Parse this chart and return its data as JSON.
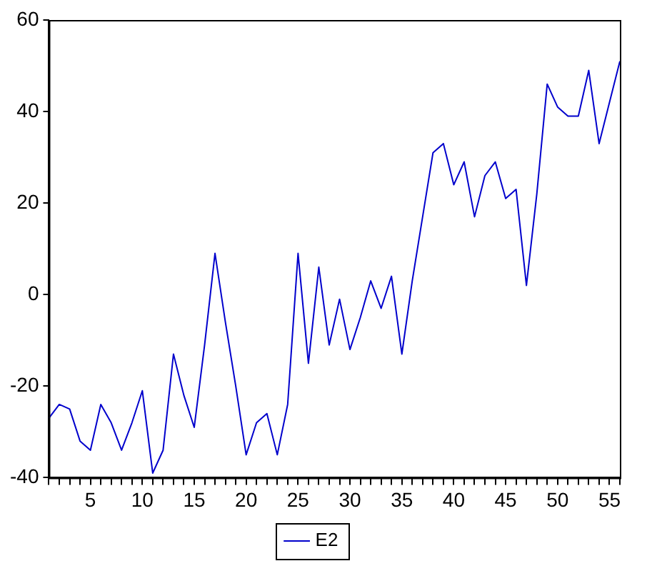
{
  "chart_data": {
    "type": "line",
    "x": [
      1,
      2,
      3,
      4,
      5,
      6,
      7,
      8,
      9,
      10,
      11,
      12,
      13,
      14,
      15,
      16,
      17,
      18,
      19,
      20,
      21,
      22,
      23,
      24,
      25,
      26,
      27,
      28,
      29,
      30,
      31,
      32,
      33,
      34,
      35,
      36,
      37,
      38,
      39,
      40,
      41,
      42,
      43,
      44,
      45,
      46,
      47,
      48,
      49,
      50,
      51,
      52,
      53,
      54,
      55,
      56
    ],
    "series": [
      {
        "name": "E2",
        "color": "#0000cc",
        "values": [
          -27,
          -24,
          -25,
          -32,
          -34,
          -24,
          -28,
          -34,
          -28,
          -21,
          -39,
          -34,
          -13,
          -22,
          -29,
          -11,
          9,
          -6,
          -20,
          -35,
          -28,
          -26,
          -35,
          -24,
          9,
          -15,
          6,
          -11,
          -1,
          -12,
          -5,
          3,
          -3,
          4,
          -13,
          3,
          17,
          31,
          33,
          24,
          29,
          17,
          26,
          29,
          21,
          23,
          2,
          22,
          46,
          41,
          39,
          39,
          49,
          33,
          42,
          51
        ]
      }
    ],
    "xlim": [
      1,
      56
    ],
    "xticks": [
      {
        "value": 1,
        "label": null
      },
      {
        "value": 2,
        "label": null
      },
      {
        "value": 3,
        "label": null
      },
      {
        "value": 4,
        "label": null
      },
      5,
      {
        "value": 6,
        "label": null
      },
      {
        "value": 7,
        "label": null
      },
      {
        "value": 8,
        "label": null
      },
      {
        "value": 9,
        "label": null
      },
      10,
      {
        "value": 11,
        "label": null
      },
      {
        "value": 12,
        "label": null
      },
      {
        "value": 13,
        "label": null
      },
      {
        "value": 14,
        "label": null
      },
      15,
      {
        "value": 16,
        "label": null
      },
      {
        "value": 17,
        "label": null
      },
      {
        "value": 18,
        "label": null
      },
      {
        "value": 19,
        "label": null
      },
      20,
      {
        "value": 21,
        "label": null
      },
      {
        "value": 22,
        "label": null
      },
      {
        "value": 23,
        "label": null
      },
      {
        "value": 24,
        "label": null
      },
      25,
      {
        "value": 26,
        "label": null
      },
      {
        "value": 27,
        "label": null
      },
      {
        "value": 28,
        "label": null
      },
      {
        "value": 29,
        "label": null
      },
      30,
      {
        "value": 31,
        "label": null
      },
      {
        "value": 32,
        "label": null
      },
      {
        "value": 33,
        "label": null
      },
      {
        "value": 34,
        "label": null
      },
      35,
      {
        "value": 36,
        "label": null
      },
      {
        "value": 37,
        "label": null
      },
      {
        "value": 38,
        "label": null
      },
      {
        "value": 39,
        "label": null
      },
      40,
      {
        "value": 41,
        "label": null
      },
      {
        "value": 42,
        "label": null
      },
      {
        "value": 43,
        "label": null
      },
      {
        "value": 44,
        "label": null
      },
      45,
      {
        "value": 46,
        "label": null
      },
      {
        "value": 47,
        "label": null
      },
      {
        "value": 48,
        "label": null
      },
      {
        "value": 49,
        "label": null
      },
      50,
      {
        "value": 51,
        "label": null
      },
      {
        "value": 52,
        "label": null
      },
      {
        "value": 53,
        "label": null
      },
      {
        "value": 54,
        "label": null
      },
      55,
      {
        "value": 56,
        "label": null
      }
    ],
    "ylim": [
      -40,
      60
    ],
    "yticks": [
      -40,
      -20,
      0,
      20,
      40,
      60
    ],
    "grid": false,
    "legend": "bottom",
    "marker": "none",
    "line_style": "solid"
  }
}
